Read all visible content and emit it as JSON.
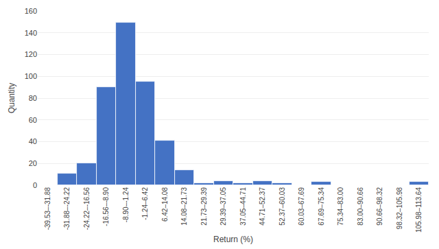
{
  "chart_data": {
    "type": "bar",
    "xlabel": "Return (%)",
    "ylabel": "Quantity",
    "categories": [
      "-39.53–-31.88",
      "-31.88–-24.22",
      "-24.22–-16.56",
      "-16.56–-8.90",
      "-8.90–-1.24",
      "-1.24–6.42",
      "6.42–14.08",
      "14.08–21.73",
      "21.73–29.39",
      "29.39–37.05",
      "37.05–44.71",
      "44.71–52.37",
      "52.37–60.03",
      "60.03–67.69",
      "67.69–75.34",
      "75.34–83.00",
      "83.00–90.66",
      "90.66–98.32",
      "98.32–105.98",
      "105.98–113.64"
    ],
    "values": [
      0,
      11,
      20,
      90,
      149,
      95,
      41,
      14,
      2,
      4,
      2,
      4,
      2,
      0,
      3,
      0,
      0,
      0,
      0,
      3
    ],
    "color": "#4472C4",
    "ylim": [
      0,
      160
    ],
    "yticks": [
      0,
      20,
      40,
      60,
      80,
      100,
      120,
      140,
      160
    ],
    "grid": true
  }
}
